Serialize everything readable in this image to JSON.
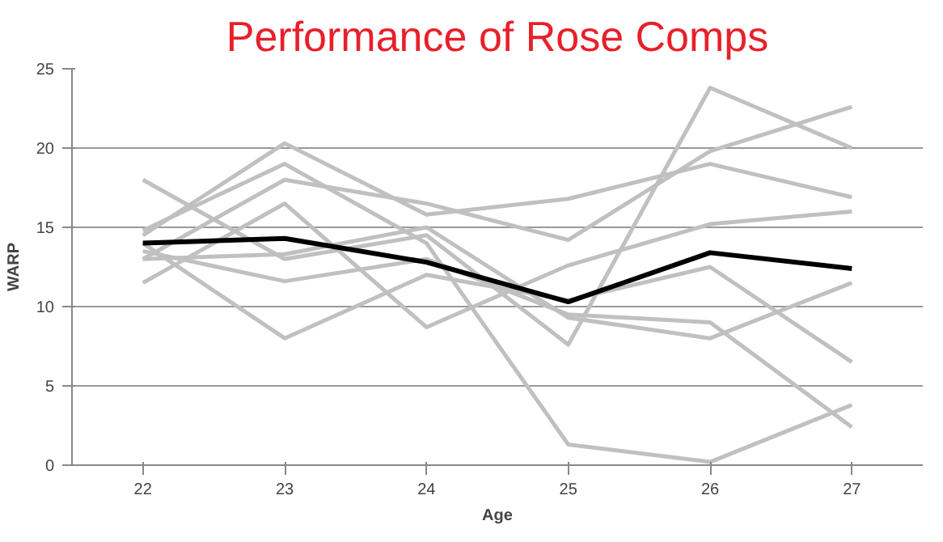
{
  "chart_data": {
    "type": "line",
    "title": "Performance of Rose Comps",
    "xlabel": "Age",
    "ylabel": "WARP",
    "categories": [
      "22",
      "23",
      "24",
      "25",
      "26",
      "27"
    ],
    "series": [
      {
        "color": "#c0c0c0",
        "values": [
          18.0,
          13.0,
          14.5,
          7.6,
          23.8,
          20.0
        ]
      },
      {
        "color": "#c0c0c0",
        "values": [
          13.0,
          18.0,
          16.5,
          14.2,
          19.8,
          22.6
        ]
      },
      {
        "color": "#c0c0c0",
        "values": [
          14.5,
          20.3,
          15.8,
          16.8,
          19.0,
          16.9
        ]
      },
      {
        "color": "#c0c0c0",
        "values": [
          11.5,
          16.5,
          8.7,
          12.6,
          15.2,
          16.0
        ]
      },
      {
        "color": "#c0c0c0",
        "values": [
          14.0,
          8.0,
          12.0,
          10.4,
          12.5,
          6.5
        ]
      },
      {
        "color": "#c0c0c0",
        "values": [
          13.0,
          13.3,
          15.0,
          9.3,
          8.0,
          11.5
        ]
      },
      {
        "color": "#c0c0c0",
        "values": [
          14.8,
          19.0,
          14.0,
          1.3,
          0.2,
          3.8
        ]
      },
      {
        "color": "#c0c0c0",
        "values": [
          13.5,
          11.6,
          13.0,
          9.5,
          9.0,
          2.4
        ]
      },
      {
        "color": "#000000",
        "values": [
          14.0,
          14.3,
          12.8,
          10.3,
          13.4,
          12.4
        ]
      }
    ],
    "ylim": [
      0,
      25
    ],
    "yticks": [
      0,
      5,
      10,
      15,
      20,
      25
    ],
    "grid": "y",
    "marker": "none",
    "line_style": "solid"
  }
}
